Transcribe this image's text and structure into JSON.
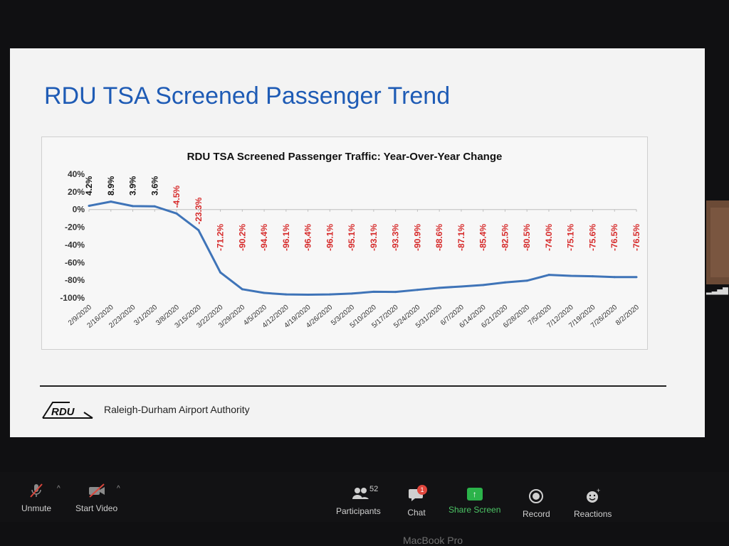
{
  "slide": {
    "title": "RDU TSA Screened Passenger Trend",
    "footer_org": "Raleigh-Durham Airport Authority",
    "logo_text": "RDU"
  },
  "chart_data": {
    "type": "line",
    "title": "RDU TSA Screened Passenger Traffic: Year-Over-Year Change",
    "xlabel": "",
    "ylabel": "",
    "ylim": [
      -100,
      40
    ],
    "yticks": [
      "40%",
      "20%",
      "0%",
      "-20%",
      "-40%",
      "-60%",
      "-80%",
      "-100%"
    ],
    "grid": false,
    "legend": "none",
    "categories": [
      "2/9/2020",
      "2/16/2020",
      "2/23/2020",
      "3/1/2020",
      "3/8/2020",
      "3/15/2020",
      "3/22/2020",
      "3/29/2020",
      "4/5/2020",
      "4/12/2020",
      "4/19/2020",
      "4/26/2020",
      "5/3/2020",
      "5/10/2020",
      "5/17/2020",
      "5/24/2020",
      "5/31/2020",
      "6/7/2020",
      "6/14/2020",
      "6/21/2020",
      "6/28/2020",
      "7/5/2020",
      "7/12/2020",
      "7/19/2020",
      "7/26/2020",
      "8/2/2020"
    ],
    "values": [
      4.2,
      8.9,
      3.9,
      3.6,
      -4.5,
      -23.3,
      -71.2,
      -90.2,
      -94.4,
      -96.1,
      -96.4,
      -96.1,
      -95.1,
      -93.1,
      -93.3,
      -90.9,
      -88.6,
      -87.1,
      -85.4,
      -82.5,
      -80.5,
      -74.0,
      -75.1,
      -75.6,
      -76.5,
      -76.5
    ],
    "data_labels": [
      "4.2%",
      "8.9%",
      "3.9%",
      "3.6%",
      "-4.5%",
      "-23.3%",
      "-71.2%",
      "-90.2%",
      "-94.4%",
      "-96.1%",
      "-96.4%",
      "-96.1%",
      "-95.1%",
      "-93.1%",
      "-93.3%",
      "-90.9%",
      "-88.6%",
      "-87.1%",
      "-85.4%",
      "-82.5%",
      "-80.5%",
      "-74.0%",
      "-75.1%",
      "-75.6%",
      "-76.5%",
      "-76.5%"
    ],
    "colors": {
      "line": "#3f74b8",
      "positive_label": "#111111",
      "negative_label": "#d62a2a"
    }
  },
  "toolbar": {
    "unmute": "Unmute",
    "start_video": "Start Video",
    "participants_count": "52",
    "participants": "Participants",
    "chat": "Chat",
    "chat_badge": "1",
    "share_screen": "Share Screen",
    "record": "Record",
    "reactions": "Reactions"
  },
  "device": {
    "brand": "MacBook Pro"
  }
}
